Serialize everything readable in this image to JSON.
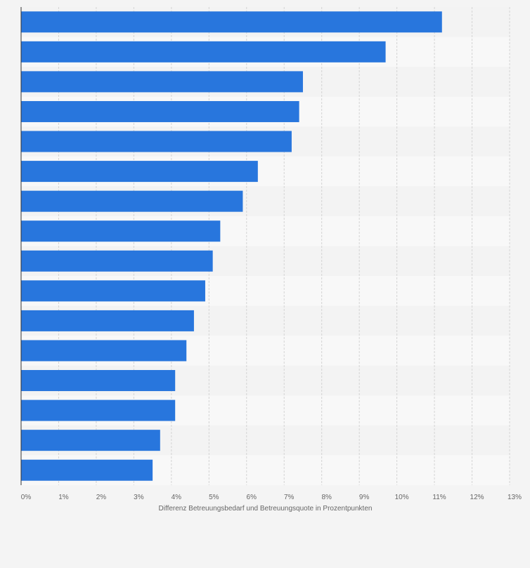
{
  "chart_data": {
    "type": "bar",
    "orientation": "horizontal",
    "categories": [
      "",
      "",
      "",
      "",
      "",
      "",
      "",
      "",
      "",
      "",
      "",
      "",
      "",
      "",
      "",
      ""
    ],
    "values": [
      11.2,
      9.7,
      7.5,
      7.4,
      7.2,
      6.3,
      5.9,
      5.3,
      5.1,
      4.9,
      4.6,
      4.4,
      4.1,
      4.1,
      3.7,
      3.5
    ],
    "xlabel": "Differenz Betreuungsbedarf und Betreuungsquote in Prozentpunkten",
    "ylabel": "",
    "xlim": [
      0,
      13
    ],
    "ticks": [
      "0%",
      "1%",
      "2%",
      "3%",
      "4%",
      "5%",
      "6%",
      "7%",
      "8%",
      "9%",
      "10%",
      "11%",
      "12%",
      "13%"
    ],
    "grid": "vertical-dashed",
    "bar_color": "#2876dd"
  }
}
